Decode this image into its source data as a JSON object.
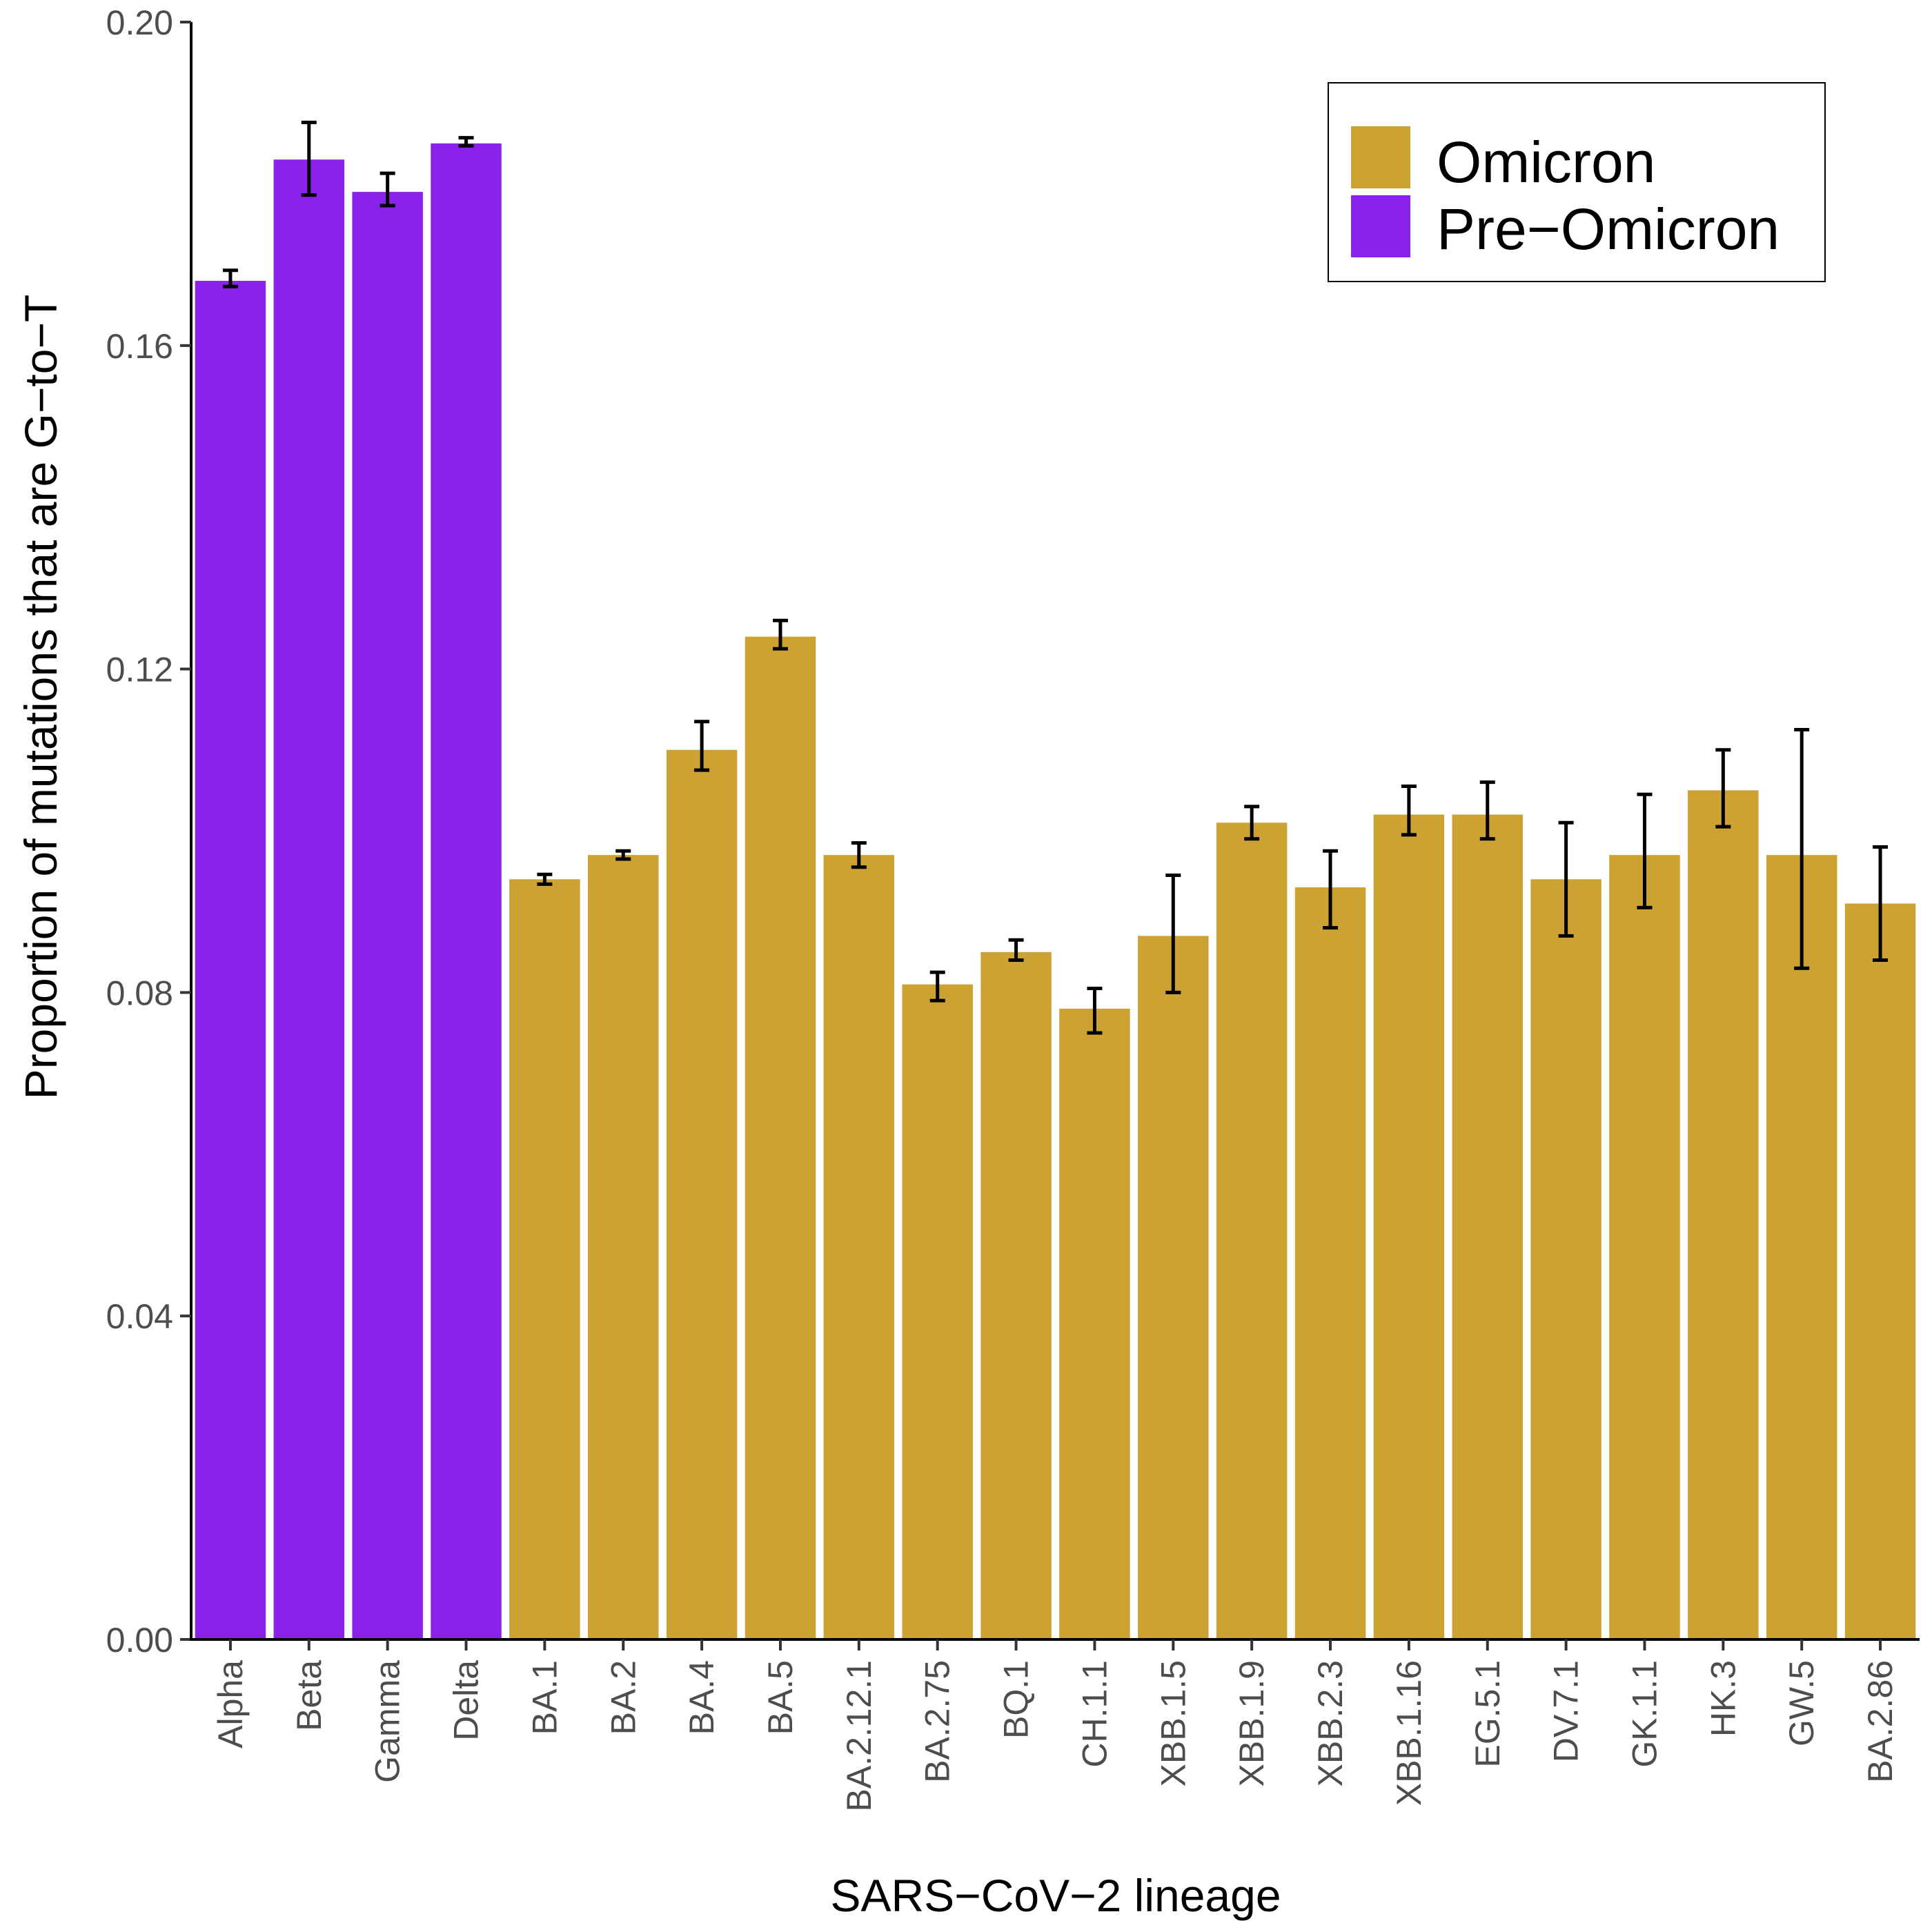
{
  "chart_data": {
    "type": "bar",
    "title": "",
    "xlabel": "SARS−CoV−2 lineage",
    "ylabel": "Proportion of mutations that are G−to−T",
    "ylim": [
      0,
      0.2
    ],
    "yticks": [
      0.0,
      0.04,
      0.08,
      0.12,
      0.16,
      0.2
    ],
    "ytick_labels": [
      "0.00",
      "0.04",
      "0.08",
      "0.12",
      "0.16",
      "0.20"
    ],
    "grid": false,
    "legend_position": "top-right",
    "series": [
      {
        "name": "Omicron",
        "color": "#CCA232"
      },
      {
        "name": "Pre−Omicron",
        "color": "#8A22EA"
      }
    ],
    "categories": [
      "Alpha",
      "Beta",
      "Gamma",
      "Delta",
      "BA.1",
      "BA.2",
      "BA.4",
      "BA.5",
      "BA.2.12.1",
      "BA.2.75",
      "BQ.1",
      "CH.1.1",
      "XBB.1.5",
      "XBB.1.9",
      "XBB.2.3",
      "XBB.1.16",
      "EG.5.1",
      "DV.7.1",
      "GK.1.1",
      "HK.3",
      "GW.5",
      "BA.2.86"
    ],
    "groups": [
      "Pre−Omicron",
      "Pre−Omicron",
      "Pre−Omicron",
      "Pre−Omicron",
      "Omicron",
      "Omicron",
      "Omicron",
      "Omicron",
      "Omicron",
      "Omicron",
      "Omicron",
      "Omicron",
      "Omicron",
      "Omicron",
      "Omicron",
      "Omicron",
      "Omicron",
      "Omicron",
      "Omicron",
      "Omicron",
      "Omicron",
      "Omicron"
    ],
    "values": [
      0.168,
      0.183,
      0.179,
      0.185,
      0.094,
      0.097,
      0.11,
      0.124,
      0.097,
      0.081,
      0.085,
      0.078,
      0.087,
      0.101,
      0.093,
      0.102,
      0.102,
      0.094,
      0.097,
      0.105,
      0.097,
      0.091
    ],
    "error_low": [
      0.1673,
      0.1786,
      0.1773,
      0.1847,
      0.0934,
      0.0965,
      0.1075,
      0.1225,
      0.0955,
      0.079,
      0.084,
      0.075,
      0.08,
      0.099,
      0.088,
      0.0995,
      0.099,
      0.087,
      0.0905,
      0.1005,
      0.083,
      0.084
    ],
    "error_high": [
      0.1693,
      0.1876,
      0.1813,
      0.1857,
      0.0946,
      0.0975,
      0.1135,
      0.126,
      0.0985,
      0.0825,
      0.0865,
      0.0805,
      0.0945,
      0.103,
      0.0975,
      0.1055,
      0.106,
      0.101,
      0.1045,
      0.11,
      0.1125,
      0.098
    ]
  }
}
